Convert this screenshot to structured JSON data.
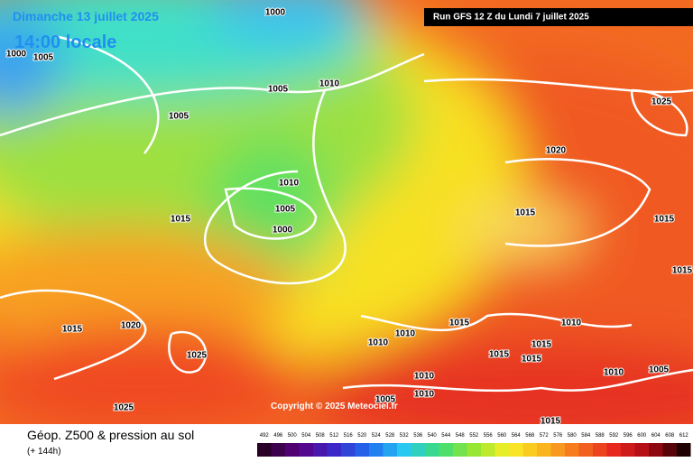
{
  "header": {
    "date": "Dimanche 13 juillet 2025",
    "time": "14:00 locale",
    "run": "Run GFS 12 Z du Lundi 7 juillet 2025"
  },
  "isobar_labels": [
    "1000",
    "1000",
    "1005",
    "1005",
    "1010",
    "1005",
    "1025",
    "1020",
    "1010",
    "1005",
    "1015",
    "1000",
    "1015",
    "1015",
    "1015",
    "1015",
    "1020",
    "1015",
    "1010",
    "1010",
    "1010",
    "1015",
    "1015",
    "1015",
    "1025",
    "1010",
    "1010",
    "1005",
    "1010",
    "1005",
    "1025",
    "1015"
  ],
  "copyright": "Copyright © 2025 Meteociel.fr",
  "legend": {
    "title": "Géop. Z500 & pression au sol",
    "subtitle": "(+ 144h)",
    "scale": [
      492,
      496,
      500,
      504,
      508,
      512,
      516,
      520,
      524,
      528,
      532,
      536,
      540,
      544,
      548,
      552,
      556,
      560,
      564,
      568,
      572,
      576,
      580,
      584,
      588,
      592,
      596,
      600,
      604,
      608,
      612
    ]
  }
}
